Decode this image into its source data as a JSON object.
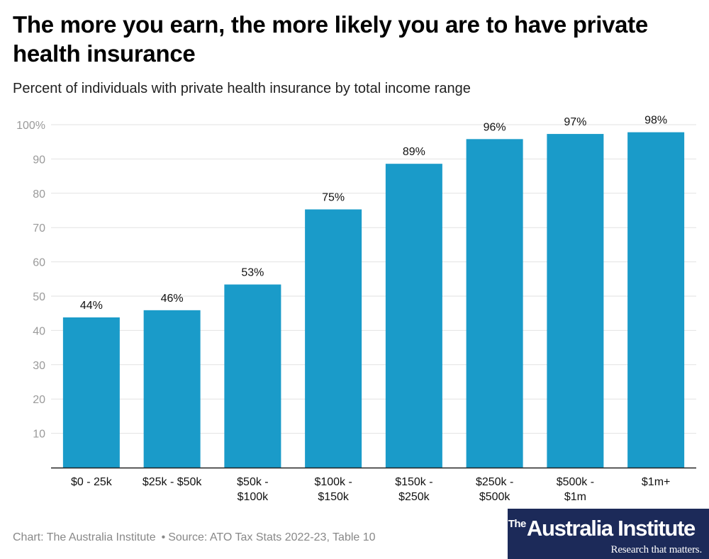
{
  "title": "The more you earn, the more likely you are to have private health insurance",
  "subtitle": "Percent of individuals with private health insurance by total income range",
  "chart_data": {
    "type": "bar",
    "categories": [
      "$0 - 25k",
      "$25k - $50k",
      "$50k - $100k",
      "$100k - $150k",
      "$150k - $250k",
      "$250k - $500k",
      "$500k - $1m",
      "$1m+"
    ],
    "category_lines": [
      [
        "$0 - 25k"
      ],
      [
        "$25k - $50k"
      ],
      [
        "$50k -",
        "$100k"
      ],
      [
        "$100k -",
        "$150k"
      ],
      [
        "$150k -",
        "$250k"
      ],
      [
        "$250k -",
        "$500k"
      ],
      [
        "$500k -",
        "$1m"
      ],
      [
        "$1m+"
      ]
    ],
    "values": [
      43.8,
      45.9,
      53.4,
      75.3,
      88.6,
      95.8,
      97.3,
      97.8
    ],
    "data_labels": [
      "44%",
      "46%",
      "53%",
      "75%",
      "89%",
      "96%",
      "97%",
      "98%"
    ],
    "ylim": [
      0,
      100
    ],
    "yticks": [
      10,
      20,
      30,
      40,
      50,
      60,
      70,
      80,
      90,
      100
    ],
    "ytick_labels": [
      "10",
      "20",
      "30",
      "40",
      "50",
      "60",
      "70",
      "80",
      "90",
      "100%"
    ],
    "grid": true,
    "bar_color": "#1a9bc9"
  },
  "footer": {
    "chart_credit": "Chart: The Australia Institute",
    "source": "Source: ATO Tax Stats 2022-23, Table 10"
  },
  "logo": {
    "prefix": "The",
    "name": "Australia Institute",
    "tagline": "Research that matters."
  }
}
